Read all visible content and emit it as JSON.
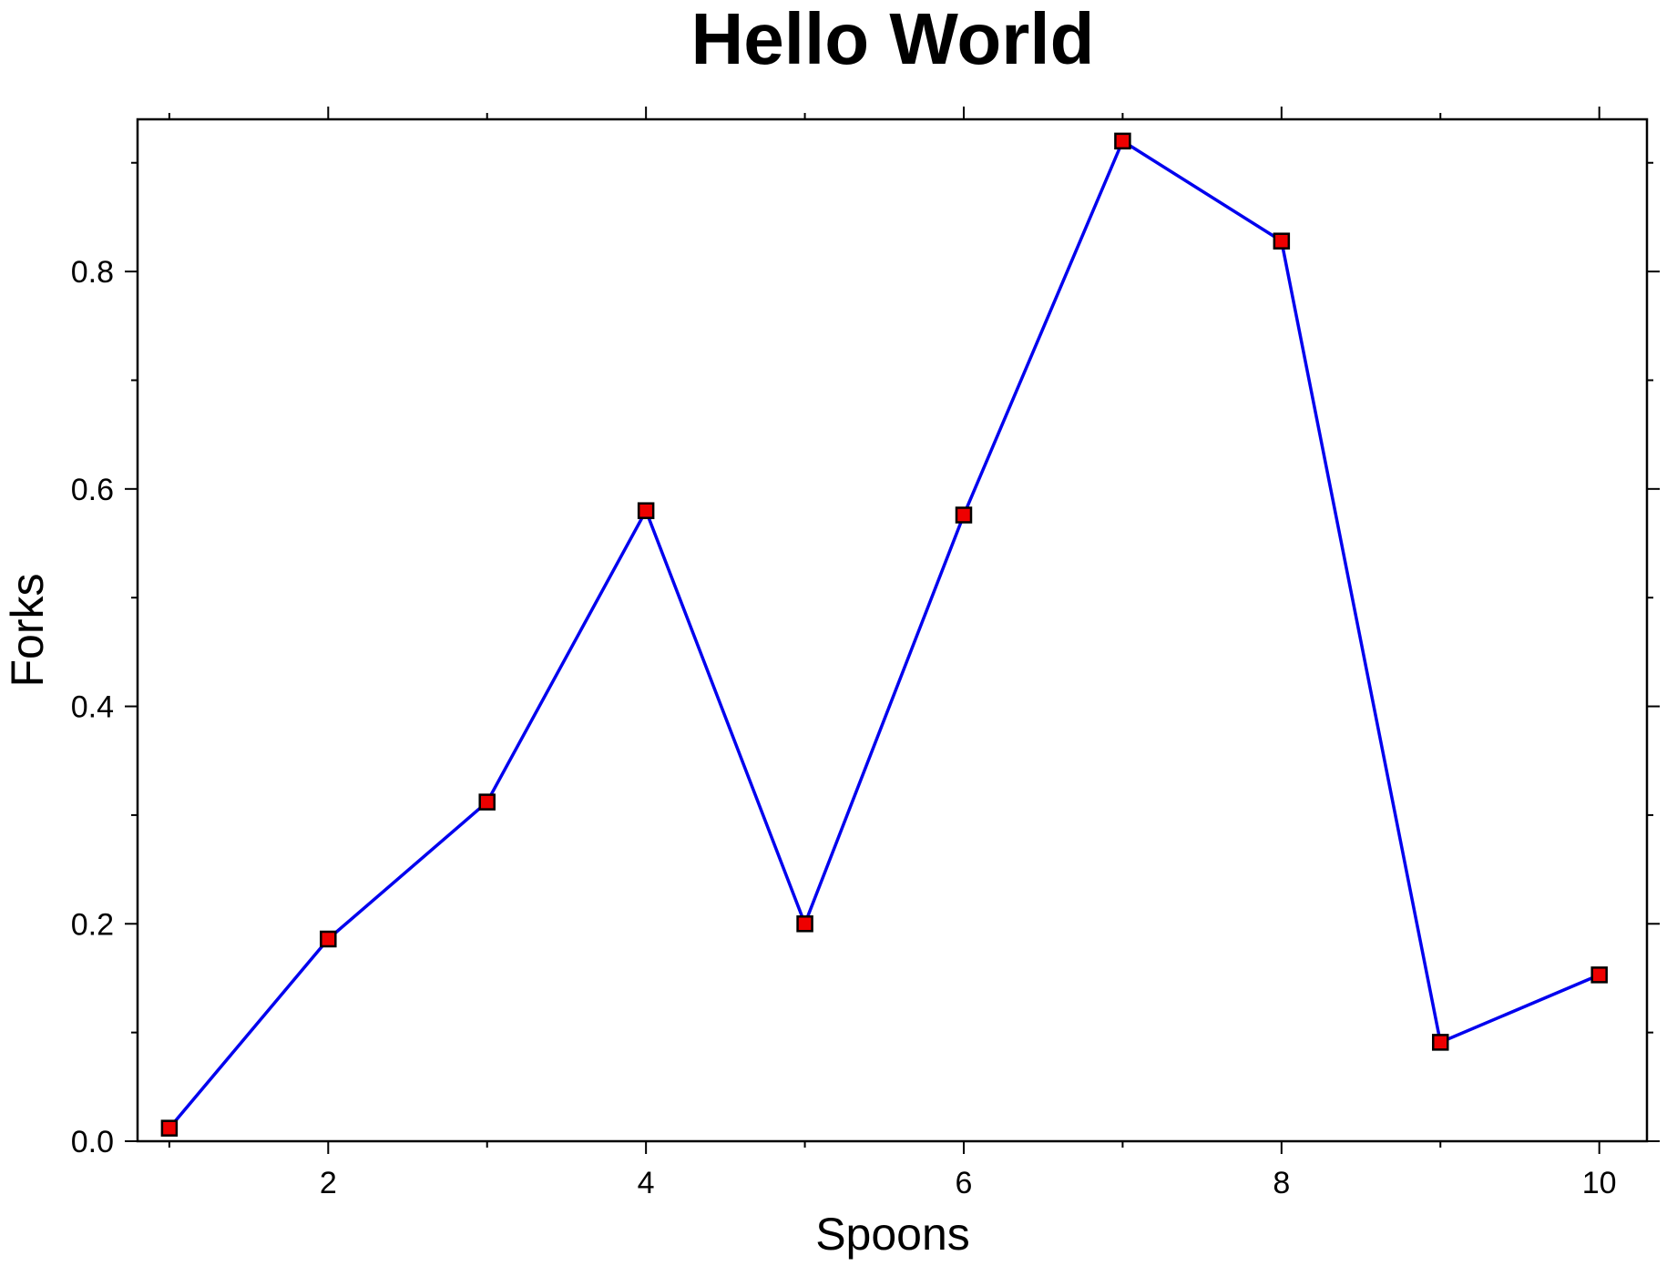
{
  "chart_data": {
    "type": "line",
    "title": "Hello World",
    "xlabel": "Spoons",
    "ylabel": "Forks",
    "xlim": [
      0.8,
      10.3
    ],
    "ylim": [
      0.0,
      0.94
    ],
    "x_major_ticks": [
      2,
      4,
      6,
      8,
      10
    ],
    "x_major_tick_labels": [
      "2",
      "4",
      "6",
      "8",
      "10"
    ],
    "x_minor_ticks": [
      1,
      3,
      5,
      7,
      9
    ],
    "y_major_ticks": [
      0.0,
      0.2,
      0.4,
      0.6,
      0.8
    ],
    "y_major_tick_labels": [
      "0.0",
      "0.2",
      "0.4",
      "0.6",
      "0.8"
    ],
    "y_minor_ticks": [
      0.1,
      0.3,
      0.5,
      0.7,
      0.9
    ],
    "grid": false,
    "series": [
      {
        "x": [
          1,
          2,
          3,
          4,
          5,
          6,
          7,
          8,
          9,
          10
        ],
        "values": [
          0.012,
          0.186,
          0.312,
          0.58,
          0.2,
          0.576,
          0.92,
          0.828,
          0.091,
          0.153
        ],
        "line_color": "#0000ee",
        "marker": "square",
        "marker_fill": "#ee0000",
        "marker_edge": "#000000"
      }
    ]
  }
}
